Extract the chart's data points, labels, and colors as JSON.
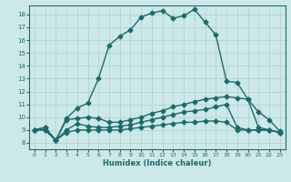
{
  "xlabel": "Humidex (Indice chaleur)",
  "ylabel": "",
  "xlim": [
    -0.5,
    23.5
  ],
  "ylim": [
    7.5,
    18.7
  ],
  "yticks": [
    8,
    9,
    10,
    11,
    12,
    13,
    14,
    15,
    16,
    17,
    18
  ],
  "xticks": [
    0,
    1,
    2,
    3,
    4,
    5,
    6,
    7,
    8,
    9,
    10,
    11,
    12,
    13,
    14,
    15,
    16,
    17,
    18,
    19,
    20,
    21,
    22,
    23
  ],
  "bg_color": "#cde8e8",
  "grid_color": "#aecece",
  "line_color": "#1a6b6b",
  "lines": [
    {
      "x": [
        0,
        1,
        2,
        3,
        4,
        5,
        6,
        7,
        8,
        9,
        10,
        11,
        12,
        13,
        14,
        15,
        16,
        17,
        18,
        19,
        20,
        21,
        22,
        23
      ],
      "y": [
        9.0,
        9.2,
        8.2,
        9.9,
        10.7,
        11.1,
        13.0,
        15.6,
        16.3,
        16.8,
        17.8,
        18.1,
        18.3,
        17.7,
        17.9,
        18.4,
        17.4,
        16.4,
        12.8,
        12.7,
        11.4,
        10.4,
        9.8,
        8.9
      ],
      "marker": "D",
      "markersize": 2.5,
      "linewidth": 1.0
    },
    {
      "x": [
        0,
        1,
        2,
        3,
        4,
        5,
        6,
        7,
        8,
        9,
        10,
        11,
        12,
        13,
        14,
        15,
        16,
        17,
        18,
        19,
        20,
        21,
        22,
        23
      ],
      "y": [
        9.0,
        9.2,
        8.2,
        9.8,
        9.9,
        10.0,
        9.9,
        9.6,
        9.6,
        9.8,
        10.0,
        10.3,
        10.5,
        10.8,
        11.0,
        11.2,
        11.4,
        11.5,
        11.6,
        11.5,
        11.4,
        9.2,
        9.0,
        8.8
      ],
      "marker": "D",
      "markersize": 2.5,
      "linewidth": 1.0
    },
    {
      "x": [
        0,
        1,
        2,
        3,
        4,
        5,
        6,
        7,
        8,
        9,
        10,
        11,
        12,
        13,
        14,
        15,
        16,
        17,
        18,
        19,
        20,
        21,
        22,
        23
      ],
      "y": [
        9.0,
        9.0,
        8.2,
        9.0,
        9.5,
        9.3,
        9.2,
        9.2,
        9.3,
        9.4,
        9.6,
        9.8,
        10.0,
        10.2,
        10.4,
        10.5,
        10.6,
        10.8,
        11.0,
        9.2,
        9.0,
        9.0,
        9.0,
        8.8
      ],
      "marker": "D",
      "markersize": 2.5,
      "linewidth": 1.0
    },
    {
      "x": [
        0,
        1,
        2,
        3,
        4,
        5,
        6,
        7,
        8,
        9,
        10,
        11,
        12,
        13,
        14,
        15,
        16,
        17,
        18,
        19,
        20,
        21,
        22,
        23
      ],
      "y": [
        9.0,
        9.0,
        8.2,
        8.8,
        9.0,
        9.0,
        9.0,
        9.0,
        9.0,
        9.1,
        9.2,
        9.3,
        9.4,
        9.5,
        9.6,
        9.6,
        9.7,
        9.7,
        9.6,
        9.0,
        9.0,
        9.0,
        9.0,
        8.8
      ],
      "marker": "D",
      "markersize": 2.5,
      "linewidth": 1.0
    }
  ]
}
